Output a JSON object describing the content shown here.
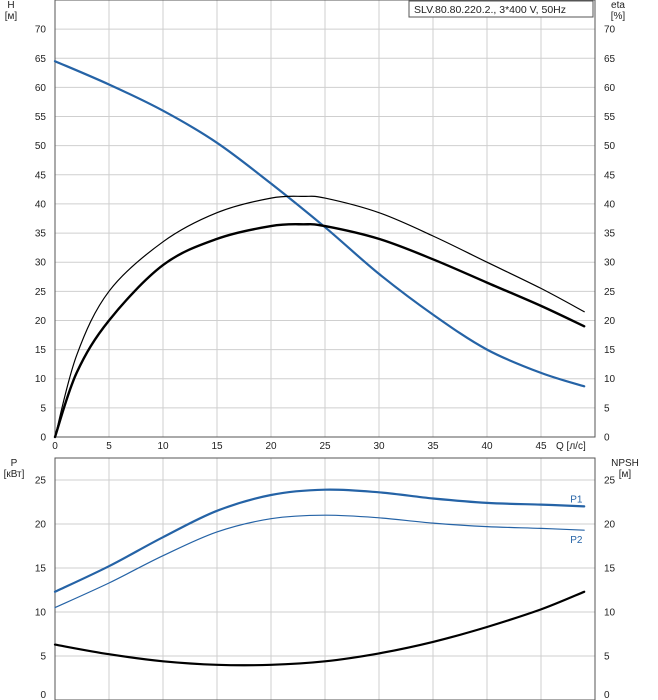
{
  "title_box": "SLV.80.80.220.2., 3*400 V, 50Hz",
  "colors": {
    "blue": "#2563a6",
    "black": "#000000",
    "grid": "#cfcfcf"
  },
  "chart_data": [
    {
      "type": "line",
      "name": "top-performance",
      "title": "SLV.80.80.220.2., 3*400 V, 50Hz",
      "xlabel": "Q [л/с]",
      "ylabel_left": "H\n[м]",
      "ylabel_right": "eta\n[%]",
      "xlim": [
        0,
        50
      ],
      "ylim": [
        0,
        75
      ],
      "xticks": [
        0,
        5,
        10,
        15,
        20,
        25,
        30,
        35,
        40,
        45
      ],
      "yticks": [
        0,
        5,
        10,
        15,
        20,
        25,
        30,
        35,
        40,
        45,
        50,
        55,
        60,
        65,
        70
      ],
      "grid": true,
      "series": [
        {
          "name": "H",
          "color": "#2563a6",
          "width": 2.2,
          "x": [
            0,
            5,
            10,
            15,
            20,
            25,
            30,
            35,
            40,
            45,
            49
          ],
          "y": [
            64.5,
            60.5,
            56,
            50.5,
            43.5,
            36,
            28,
            21,
            15,
            11,
            8.7
          ]
        },
        {
          "name": "eta (thin)",
          "color": "#000000",
          "width": 1.2,
          "x": [
            0,
            2,
            5,
            10,
            15,
            20,
            23,
            25,
            30,
            35,
            40,
            45,
            49
          ],
          "y": [
            0,
            14,
            25,
            33.5,
            38.5,
            41,
            41.3,
            41,
            38.5,
            34.5,
            30,
            25.5,
            21.5
          ]
        },
        {
          "name": "eta (thick)",
          "color": "#000000",
          "width": 2.4,
          "x": [
            0,
            2,
            5,
            10,
            15,
            20,
            23,
            25,
            30,
            35,
            40,
            45,
            49
          ],
          "y": [
            0,
            11,
            20,
            29.5,
            34,
            36.2,
            36.5,
            36.2,
            34,
            30.5,
            26.5,
            22.5,
            19
          ]
        }
      ]
    },
    {
      "type": "line",
      "name": "bottom-power",
      "xlabel": "",
      "ylabel_left": "P\n[кВт]",
      "ylabel_right": "NPSH\n[м]",
      "xlim": [
        0,
        50
      ],
      "ylim": [
        0,
        27.5
      ],
      "yticks": [
        0,
        5,
        10,
        15,
        20,
        25
      ],
      "grid": true,
      "series": [
        {
          "name": "P1",
          "label": "P1",
          "color": "#2563a6",
          "width": 2.2,
          "x": [
            0,
            5,
            10,
            15,
            20,
            25,
            30,
            35,
            40,
            45,
            49
          ],
          "y": [
            12.3,
            15.2,
            18.5,
            21.5,
            23.3,
            23.9,
            23.6,
            22.9,
            22.4,
            22.2,
            22
          ]
        },
        {
          "name": "P2",
          "label": "P2",
          "color": "#2563a6",
          "width": 1.2,
          "x": [
            0,
            5,
            10,
            15,
            20,
            25,
            30,
            35,
            40,
            45,
            49
          ],
          "y": [
            10.5,
            13.3,
            16.4,
            19.1,
            20.6,
            21,
            20.7,
            20.1,
            19.7,
            19.5,
            19.3
          ]
        },
        {
          "name": "NPSH",
          "color": "#000000",
          "width": 2.2,
          "x": [
            0,
            5,
            10,
            15,
            20,
            25,
            30,
            35,
            40,
            45,
            49
          ],
          "y": [
            6.3,
            5.2,
            4.4,
            4,
            4,
            4.4,
            5.3,
            6.6,
            8.3,
            10.3,
            12.3
          ]
        }
      ]
    }
  ]
}
